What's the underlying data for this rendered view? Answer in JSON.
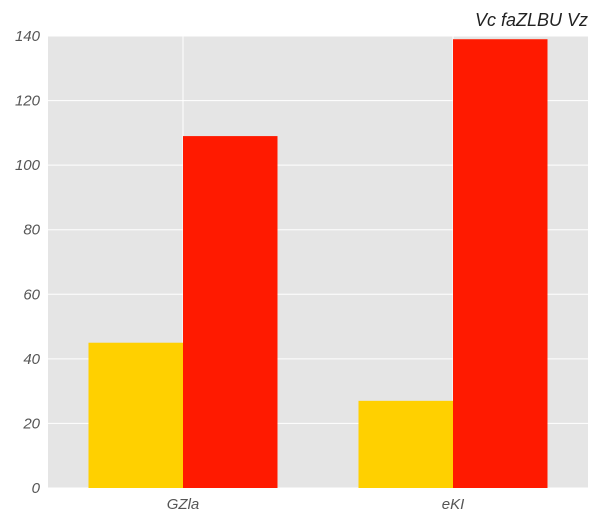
{
  "chart_data": {
    "type": "bar",
    "title": "Vc faZLBU Vz",
    "xlabel": "",
    "ylabel": "",
    "categories": [
      "GZla",
      "eKI"
    ],
    "series": [
      {
        "values": [
          45,
          27
        ],
        "color": "#ffd000"
      },
      {
        "values": [
          109,
          139
        ],
        "color": "#ff1a00"
      }
    ],
    "ylim": [
      0,
      140
    ],
    "yticks": [
      0,
      20,
      40,
      60,
      80,
      100,
      120,
      140
    ],
    "grid": true,
    "background_color": "#e5e5e5",
    "grid_color": "#ffffff"
  }
}
